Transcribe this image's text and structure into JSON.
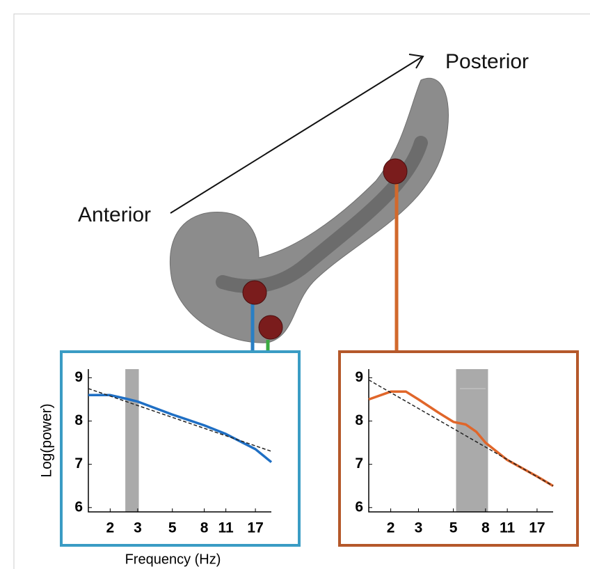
{
  "labels": {
    "anterior": "Anterior",
    "posterior": "Posterior"
  },
  "chart_data": [
    {
      "type": "line",
      "xscale": "log",
      "ylabel": "Log(power)",
      "xlabel": "Frequency (Hz)",
      "xlim": [
        1.45,
        21.5
      ],
      "ylim": [
        5.9,
        9.2
      ],
      "xticks": [
        2,
        3,
        5,
        8,
        11,
        17
      ],
      "yticks": [
        6,
        7,
        8,
        9
      ],
      "frame_color": "#3a9cc4",
      "shaded": {
        "x": [
          2.5,
          3.05
        ],
        "color": "#aaaaaa"
      },
      "series": [
        {
          "color": "#1f6fc4",
          "dashed": false,
          "x": [
            1.45,
            2,
            2.5,
            3,
            5,
            8,
            11,
            15,
            17,
            21.5
          ],
          "values": [
            8.6,
            8.6,
            8.52,
            8.45,
            8.15,
            7.9,
            7.7,
            7.45,
            7.35,
            7.05
          ]
        },
        {
          "color": "#222222",
          "dashed": true,
          "x": [
            1.45,
            21.5
          ],
          "values": [
            8.75,
            7.3
          ]
        }
      ]
    },
    {
      "type": "line",
      "xscale": "log",
      "xlim": [
        1.45,
        21.5
      ],
      "ylim": [
        5.9,
        9.2
      ],
      "xticks": [
        2,
        3,
        5,
        8,
        11,
        17
      ],
      "yticks": [
        6,
        7,
        8,
        9
      ],
      "frame_color": "#b5582a",
      "shaded": {
        "x": [
          5.2,
          8.3
        ],
        "color": "#aaaaaa"
      },
      "significance": {
        "x": [
          5.5,
          8
        ],
        "y": 8.75,
        "color": "#bbbbbb"
      },
      "series": [
        {
          "color": "#e0662a",
          "dashed": false,
          "x": [
            1.45,
            2,
            2.5,
            3,
            4,
            5,
            6,
            7,
            8,
            11,
            17,
            21.5
          ],
          "values": [
            8.5,
            8.68,
            8.68,
            8.5,
            8.2,
            7.98,
            7.92,
            7.75,
            7.5,
            7.1,
            6.72,
            6.5
          ]
        },
        {
          "color": "#222222",
          "dashed": true,
          "x": [
            1.45,
            21.5
          ],
          "values": [
            8.95,
            6.5
          ]
        }
      ]
    }
  ]
}
